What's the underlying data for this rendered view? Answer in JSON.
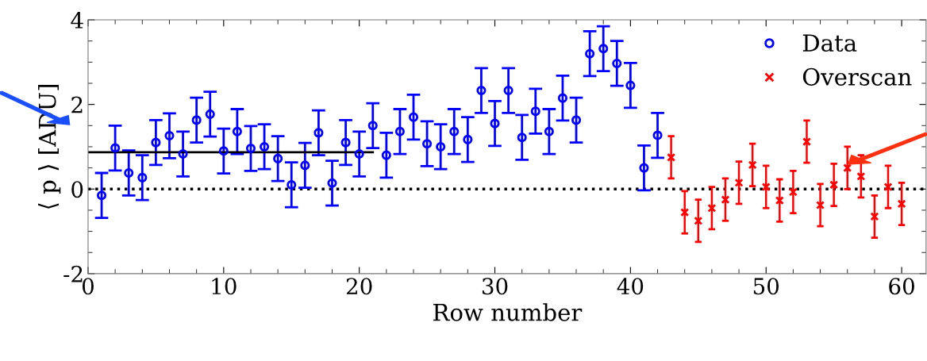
{
  "chart_data": {
    "type": "scatter",
    "xlabel": "Row number",
    "ylabel": "⟨ p ⟩ [ADU]",
    "xlim": [
      0,
      61.8
    ],
    "xticks": [
      0,
      10,
      20,
      30,
      40,
      50,
      60
    ],
    "ylim": [
      -2,
      4
    ],
    "yticks": [
      -2,
      0,
      2,
      4
    ],
    "grid": false,
    "legend": "top right",
    "series": [
      {
        "name": "Data",
        "color": "#0000ff",
        "marker": "circle",
        "x": [
          1,
          2,
          3,
          4,
          5,
          6,
          7,
          8,
          9,
          10,
          11,
          12,
          13,
          14,
          15,
          16,
          17,
          18,
          19,
          20,
          21,
          22,
          23,
          24,
          25,
          26,
          27,
          28,
          29,
          30,
          31,
          32,
          33,
          34,
          35,
          36,
          37,
          38,
          39,
          40,
          41,
          42
        ],
        "values": [
          -0.15,
          0.97,
          0.38,
          0.27,
          1.1,
          1.26,
          0.83,
          1.63,
          1.77,
          0.9,
          1.36,
          0.96,
          1.0,
          0.72,
          0.1,
          0.56,
          1.33,
          0.14,
          1.1,
          0.83,
          1.5,
          0.8,
          1.36,
          1.7,
          1.07,
          1.0,
          1.36,
          1.17,
          2.33,
          1.55,
          2.33,
          1.22,
          1.84,
          1.36,
          2.15,
          1.63,
          3.2,
          3.32,
          2.97,
          2.45,
          0.5,
          1.27
        ],
        "errors": [
          0.53,
          0.53,
          0.53,
          0.53,
          0.53,
          0.53,
          0.53,
          0.53,
          0.53,
          0.53,
          0.53,
          0.53,
          0.53,
          0.53,
          0.53,
          0.53,
          0.53,
          0.53,
          0.53,
          0.53,
          0.53,
          0.53,
          0.53,
          0.53,
          0.53,
          0.53,
          0.53,
          0.53,
          0.53,
          0.53,
          0.53,
          0.53,
          0.53,
          0.53,
          0.53,
          0.53,
          0.53,
          0.53,
          0.53,
          0.53,
          0.53,
          0.53
        ]
      },
      {
        "name": "Overscan",
        "color": "#ff0000",
        "marker": "cross",
        "x": [
          43,
          44,
          45,
          46,
          47,
          48,
          49,
          50,
          51,
          52,
          53,
          54,
          55,
          56,
          57,
          58,
          59,
          60
        ],
        "values": [
          0.75,
          -0.55,
          -0.75,
          -0.45,
          -0.25,
          0.15,
          0.57,
          0.05,
          -0.27,
          -0.07,
          1.12,
          -0.38,
          0.1,
          0.5,
          0.3,
          -0.65,
          0.05,
          -0.35
        ],
        "errors": [
          0.5,
          0.5,
          0.5,
          0.5,
          0.5,
          0.5,
          0.5,
          0.5,
          0.5,
          0.5,
          0.5,
          0.5,
          0.5,
          0.5,
          0.5,
          0.5,
          0.5,
          0.5
        ]
      },
      {
        "type": "line",
        "color": "#000000",
        "line_style": "solid",
        "x": [
          0,
          21
        ],
        "values": [
          0.87,
          0.87
        ]
      }
    ],
    "ref_lines": [
      {
        "axis": "y",
        "value": 0,
        "color": "#000000",
        "line_style": "dotted"
      }
    ]
  }
}
